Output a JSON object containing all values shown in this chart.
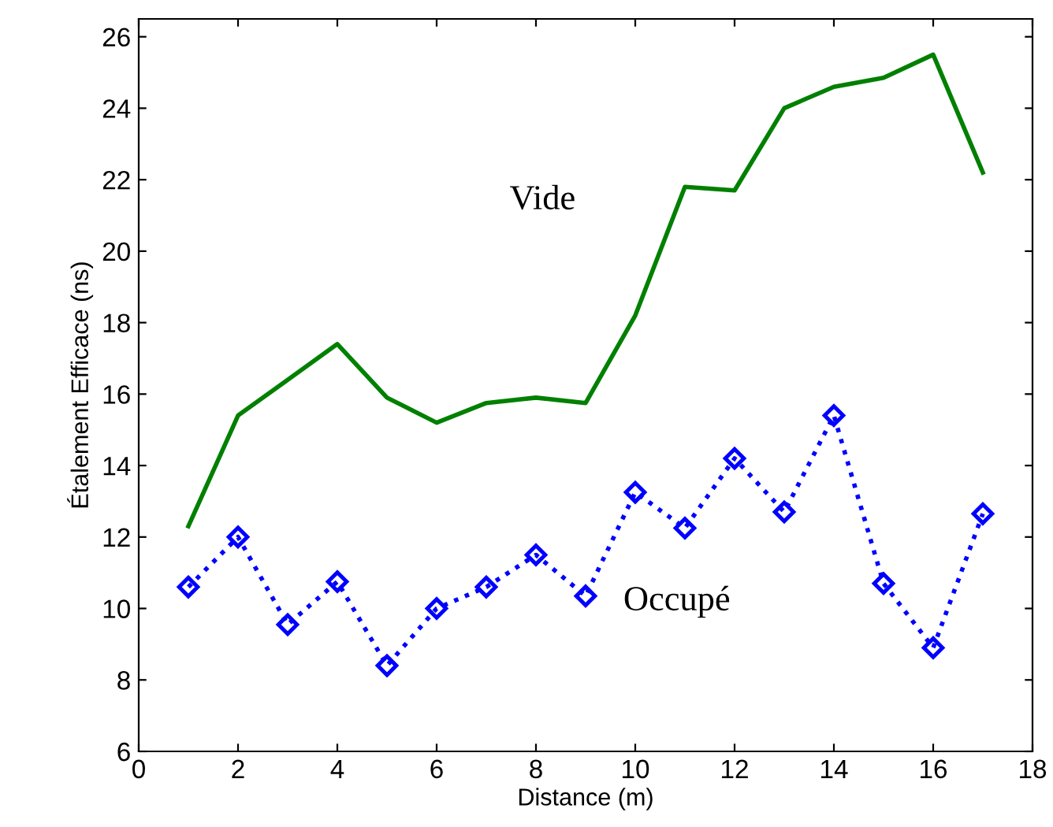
{
  "chart_data": {
    "type": "line",
    "xlabel": "Distance (m)",
    "ylabel": "Étalement Efficace (ns)",
    "xlim": [
      0,
      18
    ],
    "xticks": [
      0,
      2,
      4,
      6,
      8,
      10,
      12,
      14,
      16,
      18
    ],
    "ylim": [
      6,
      26.5
    ],
    "yticks": [
      6,
      8,
      10,
      12,
      14,
      16,
      18,
      20,
      22,
      24,
      26
    ],
    "grid": false,
    "legend": false,
    "x": [
      1,
      2,
      3,
      4,
      5,
      6,
      7,
      8,
      9,
      10,
      11,
      12,
      13,
      14,
      15,
      16,
      17
    ],
    "series": [
      {
        "name": "Vide",
        "color": "#008000",
        "marker": "none",
        "line_style": "solid",
        "values": [
          12.3,
          15.4,
          16.4,
          17.4,
          15.9,
          15.2,
          15.75,
          15.9,
          15.75,
          18.2,
          21.8,
          21.7,
          24.0,
          24.6,
          24.85,
          25.5,
          22.2
        ]
      },
      {
        "name": "Occupé",
        "color": "#0000ff",
        "marker": "diamond",
        "line_style": "dotted",
        "values": [
          10.6,
          12.0,
          9.55,
          10.75,
          8.4,
          10.0,
          10.6,
          11.5,
          10.35,
          13.25,
          12.25,
          14.2,
          12.7,
          15.4,
          10.7,
          8.9,
          12.65
        ]
      }
    ]
  }
}
